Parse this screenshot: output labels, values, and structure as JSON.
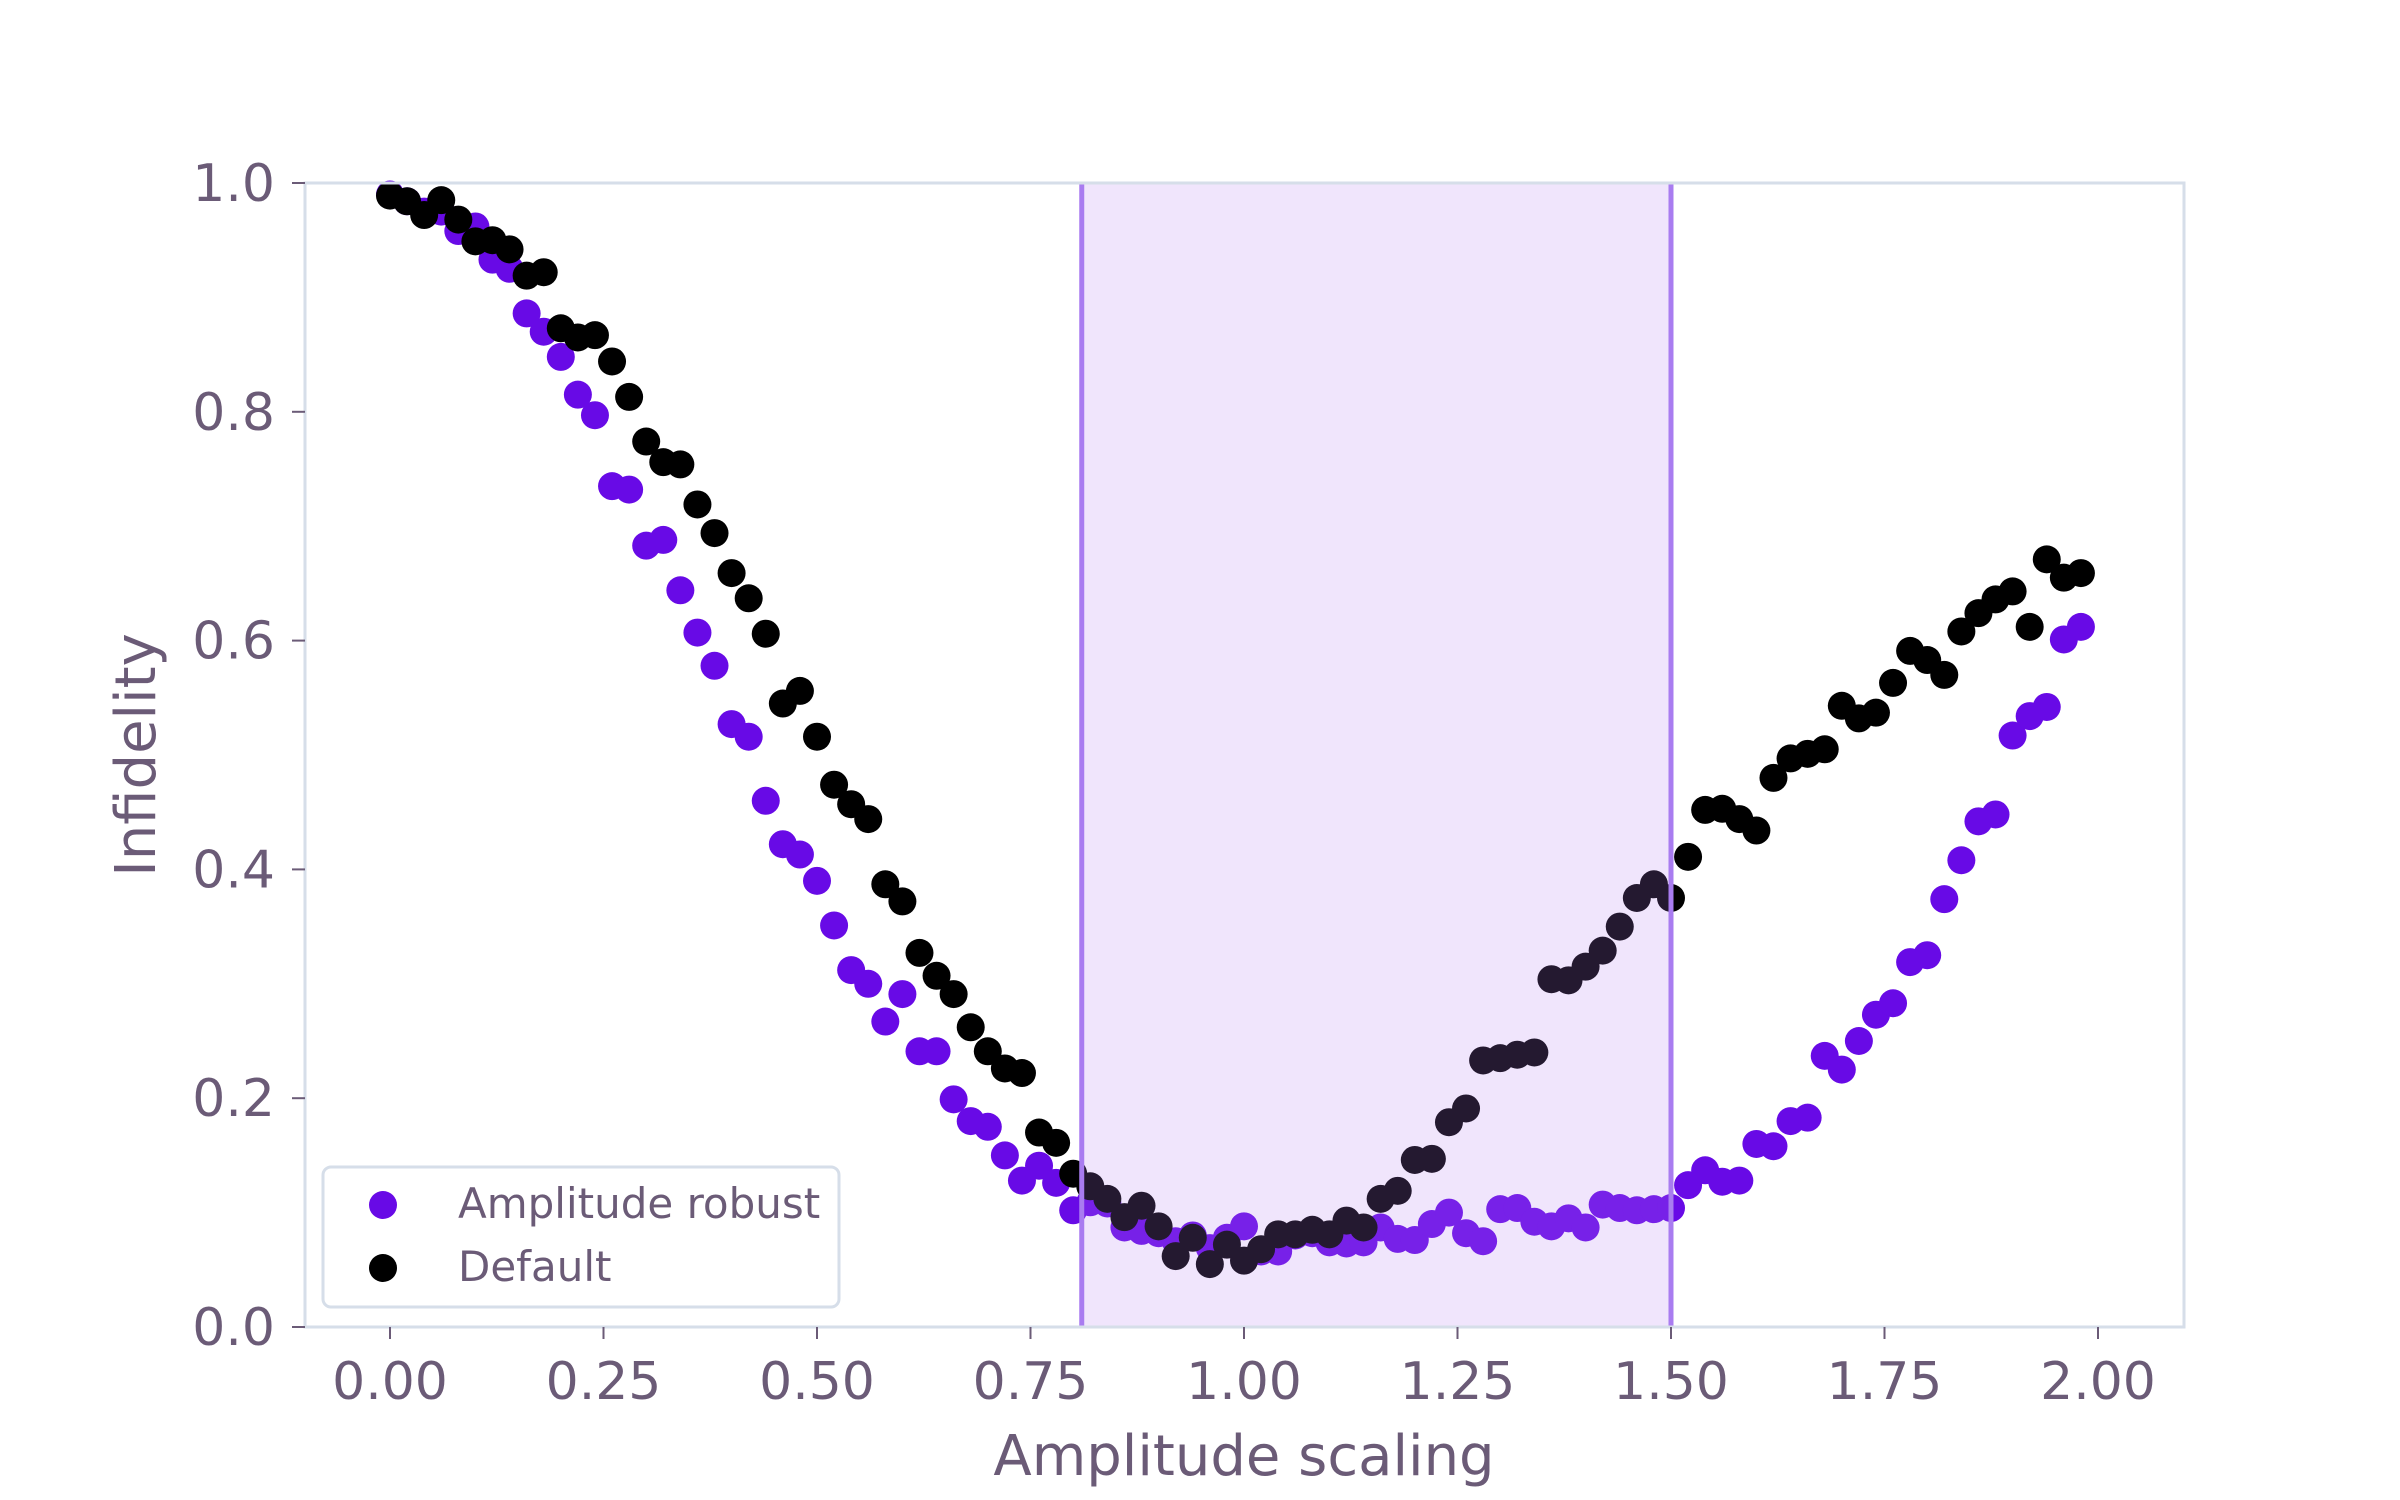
{
  "chart_data": {
    "type": "scatter",
    "title": "",
    "xlabel": "Amplitude scaling",
    "ylabel": "Infidelity",
    "xlim": [
      -0.1,
      2.1
    ],
    "ylim": [
      0.0,
      1.0
    ],
    "xticks": [
      "0.00",
      "0.25",
      "0.50",
      "0.75",
      "1.00",
      "1.25",
      "1.50",
      "1.75",
      "2.00"
    ],
    "xtick_values": [
      0.0,
      0.25,
      0.5,
      0.75,
      1.0,
      1.25,
      1.5,
      1.75,
      2.0
    ],
    "yticks": [
      "0.0",
      "0.2",
      "0.4",
      "0.6",
      "0.8",
      "1.0"
    ],
    "ytick_values": [
      0.0,
      0.2,
      0.4,
      0.6,
      0.8,
      1.0
    ],
    "grid": false,
    "legend_position": "lower left",
    "shaded_region": {
      "x_start": 0.81,
      "x_end": 1.5,
      "fill": "#ede3fa",
      "edge": "#a97cf0"
    },
    "series": [
      {
        "name": "Amplitude robust",
        "color": "#680ae6",
        "x_start": 0.0,
        "x_step": 0.02,
        "values": [
          0.99,
          0.984,
          0.975,
          0.975,
          0.958,
          0.962,
          0.933,
          0.925,
          0.886,
          0.87,
          0.848,
          0.815,
          0.797,
          0.735,
          0.732,
          0.683,
          0.688,
          0.644,
          0.607,
          0.578,
          0.527,
          0.516,
          0.46,
          0.422,
          0.413,
          0.39,
          0.351,
          0.312,
          0.3,
          0.267,
          0.291,
          0.241,
          0.241,
          0.199,
          0.18,
          0.175,
          0.15,
          0.128,
          0.141,
          0.126,
          0.102,
          0.109,
          0.108,
          0.087,
          0.084,
          0.082,
          0.075,
          0.08,
          0.069,
          0.078,
          0.088,
          0.066,
          0.066,
          0.08,
          0.082,
          0.074,
          0.073,
          0.074,
          0.087,
          0.077,
          0.076,
          0.09,
          0.1,
          0.082,
          0.075,
          0.103,
          0.104,
          0.092,
          0.088,
          0.095,
          0.087,
          0.107,
          0.104,
          0.102,
          0.103,
          0.104,
          0.124,
          0.137,
          0.127,
          0.128,
          0.16,
          0.158,
          0.18,
          0.183,
          0.237,
          0.225,
          0.25,
          0.273,
          0.283,
          0.319,
          0.325,
          0.374,
          0.408,
          0.442,
          0.448,
          0.517,
          0.534,
          0.542,
          0.601,
          0.612
        ]
      },
      {
        "name": "Default",
        "color": "#000000",
        "x_start": 0.0,
        "x_step": 0.02,
        "values": [
          0.989,
          0.984,
          0.972,
          0.985,
          0.968,
          0.949,
          0.95,
          0.942,
          0.919,
          0.922,
          0.873,
          0.865,
          0.867,
          0.844,
          0.813,
          0.774,
          0.756,
          0.754,
          0.719,
          0.694,
          0.659,
          0.637,
          0.606,
          0.545,
          0.556,
          0.516,
          0.474,
          0.457,
          0.444,
          0.387,
          0.372,
          0.327,
          0.307,
          0.291,
          0.262,
          0.241,
          0.226,
          0.222,
          0.17,
          0.161,
          0.134,
          0.123,
          0.112,
          0.096,
          0.106,
          0.088,
          0.062,
          0.078,
          0.055,
          0.072,
          0.058,
          0.068,
          0.081,
          0.081,
          0.085,
          0.081,
          0.093,
          0.087,
          0.112,
          0.119,
          0.146,
          0.147,
          0.179,
          0.191,
          0.233,
          0.235,
          0.238,
          0.24,
          0.304,
          0.303,
          0.315,
          0.329,
          0.35,
          0.375,
          0.387,
          0.375,
          0.411,
          0.452,
          0.453,
          0.444,
          0.434,
          0.48,
          0.497,
          0.501,
          0.505,
          0.543,
          0.532,
          0.537,
          0.563,
          0.591,
          0.583,
          0.57,
          0.608,
          0.624,
          0.636,
          0.643,
          0.612,
          0.671,
          0.655,
          0.659
        ]
      }
    ]
  },
  "legend": {
    "items": [
      {
        "label": "Amplitude robust",
        "color": "#680ae6"
      },
      {
        "label": "Default",
        "color": "#000000"
      }
    ]
  },
  "colors": {
    "text": "#6b5b77",
    "spine": "#d6dee9",
    "accent_line": "#a97cf0",
    "shade": "#ede3fa"
  }
}
